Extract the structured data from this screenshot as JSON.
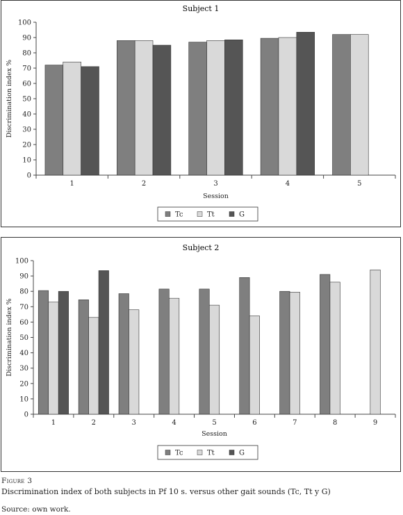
{
  "colors": {
    "Tc": "#7f7f7f",
    "Tt": "#d9d9d9",
    "G": "#555555"
  },
  "figure": {
    "label": "Figure 3",
    "description": "Discrimination index of both subjects in Pf 10 s. versus other gait sounds (Tc, Tt y G)",
    "source": "Source: own work."
  },
  "chart_data": [
    {
      "type": "bar",
      "title": "Subject 1",
      "xlabel": "Session",
      "ylabel": "Discrimination index %",
      "ylim": [
        0,
        100
      ],
      "yticks": [
        0,
        10,
        20,
        30,
        40,
        50,
        60,
        70,
        80,
        90,
        100
      ],
      "categories": [
        "1",
        "2",
        "3",
        "4",
        "5"
      ],
      "series": [
        {
          "name": "Tc",
          "values": [
            72,
            88,
            87,
            89.5,
            92
          ]
        },
        {
          "name": "Tt",
          "values": [
            74,
            88,
            88,
            90,
            92
          ]
        },
        {
          "name": "G",
          "values": [
            71,
            85,
            88.5,
            93.5,
            null
          ]
        }
      ],
      "legend_position": "bottom",
      "grid": false
    },
    {
      "type": "bar",
      "title": "Subject 2",
      "xlabel": "Session",
      "ylabel": "Discrimination index %",
      "ylim": [
        0,
        100
      ],
      "yticks": [
        0,
        10,
        20,
        30,
        40,
        50,
        60,
        70,
        80,
        90,
        100
      ],
      "categories": [
        "1",
        "2",
        "3",
        "4",
        "5",
        "6",
        "7",
        "8",
        "9"
      ],
      "series": [
        {
          "name": "Tc",
          "values": [
            80.5,
            74.5,
            78.5,
            81.5,
            81.5,
            89,
            80,
            91,
            null
          ]
        },
        {
          "name": "Tt",
          "values": [
            73,
            63,
            68,
            75.5,
            71,
            64,
            79.5,
            86,
            94
          ]
        },
        {
          "name": "G",
          "values": [
            80,
            93.5,
            null,
            null,
            null,
            null,
            null,
            null,
            null
          ]
        }
      ],
      "legend_position": "bottom",
      "grid": false
    }
  ]
}
